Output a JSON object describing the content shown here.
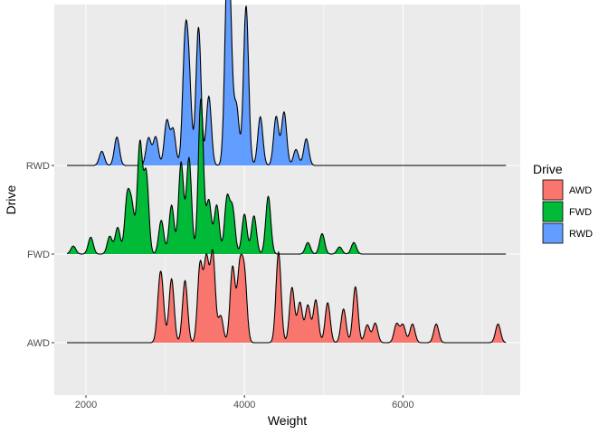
{
  "chart_data": {
    "type": "ridgeline",
    "xlabel": "Weight",
    "ylabel": "Drive",
    "xlim": [
      1600,
      7480
    ],
    "x_ticks": [
      2000,
      4000,
      6000
    ],
    "x_tick_labels": [
      "2000",
      "4000",
      "6000"
    ],
    "x_minor_ticks": [
      3000,
      5000,
      7000
    ],
    "categories": [
      "AWD",
      "FWD",
      "RWD"
    ],
    "density_x_range": [
      1760,
      7300
    ],
    "ridge_scale": 1.74,
    "grid": true,
    "legend": {
      "title": "Drive",
      "position": "right"
    },
    "colors": {
      "AWD": "#F8766D",
      "FWD": "#00BA38",
      "RWD": "#619CFF",
      "panel": "#EBEBEB",
      "grid": "#FFFFFF"
    },
    "series": [
      {
        "name": "AWD",
        "peaks": [
          {
            "x": 2930,
            "h": 0.5
          },
          {
            "x": 2960,
            "h": 0.4
          },
          {
            "x": 3080,
            "h": 0.72
          },
          {
            "x": 3250,
            "h": 0.7
          },
          {
            "x": 3440,
            "h": 0.88
          },
          {
            "x": 3520,
            "h": 0.92
          },
          {
            "x": 3600,
            "h": 1.0
          },
          {
            "x": 3700,
            "h": 0.3
          },
          {
            "x": 3850,
            "h": 0.85
          },
          {
            "x": 3940,
            "h": 0.8
          },
          {
            "x": 4000,
            "h": 0.74
          },
          {
            "x": 4430,
            "h": 1.02
          },
          {
            "x": 4600,
            "h": 0.62
          },
          {
            "x": 4700,
            "h": 0.45
          },
          {
            "x": 4800,
            "h": 0.42
          },
          {
            "x": 4900,
            "h": 0.48
          },
          {
            "x": 5050,
            "h": 0.45
          },
          {
            "x": 5250,
            "h": 0.38
          },
          {
            "x": 5400,
            "h": 0.63
          },
          {
            "x": 5550,
            "h": 0.2
          },
          {
            "x": 5650,
            "h": 0.22
          },
          {
            "x": 5920,
            "h": 0.21
          },
          {
            "x": 6000,
            "h": 0.2
          },
          {
            "x": 6120,
            "h": 0.21
          },
          {
            "x": 6420,
            "h": 0.21
          },
          {
            "x": 7200,
            "h": 0.21
          }
        ]
      },
      {
        "name": "FWD",
        "peaks": [
          {
            "x": 1840,
            "h": 0.09
          },
          {
            "x": 2060,
            "h": 0.19
          },
          {
            "x": 2300,
            "h": 0.2
          },
          {
            "x": 2400,
            "h": 0.3
          },
          {
            "x": 2520,
            "h": 0.62
          },
          {
            "x": 2580,
            "h": 0.5
          },
          {
            "x": 2680,
            "h": 1.24
          },
          {
            "x": 2760,
            "h": 0.9
          },
          {
            "x": 2950,
            "h": 0.38
          },
          {
            "x": 3080,
            "h": 0.55
          },
          {
            "x": 3200,
            "h": 1.03
          },
          {
            "x": 3300,
            "h": 1.08
          },
          {
            "x": 3450,
            "h": 1.75
          },
          {
            "x": 3550,
            "h": 0.6
          },
          {
            "x": 3650,
            "h": 0.55
          },
          {
            "x": 3780,
            "h": 0.62
          },
          {
            "x": 3850,
            "h": 0.5
          },
          {
            "x": 4000,
            "h": 0.45
          },
          {
            "x": 4120,
            "h": 0.43
          },
          {
            "x": 4300,
            "h": 0.65
          },
          {
            "x": 4800,
            "h": 0.13
          },
          {
            "x": 4980,
            "h": 0.23
          },
          {
            "x": 5200,
            "h": 0.08
          },
          {
            "x": 5380,
            "h": 0.13
          }
        ]
      },
      {
        "name": "RWD",
        "peaks": [
          {
            "x": 2200,
            "h": 0.16
          },
          {
            "x": 2390,
            "h": 0.32
          },
          {
            "x": 2790,
            "h": 0.31
          },
          {
            "x": 2880,
            "h": 0.32
          },
          {
            "x": 3020,
            "h": 0.5
          },
          {
            "x": 3100,
            "h": 0.4
          },
          {
            "x": 3250,
            "h": 1.28
          },
          {
            "x": 3300,
            "h": 0.9
          },
          {
            "x": 3420,
            "h": 1.56
          },
          {
            "x": 3550,
            "h": 0.78
          },
          {
            "x": 3780,
            "h": 1.8
          },
          {
            "x": 3820,
            "h": 1.2
          },
          {
            "x": 3900,
            "h": 0.65
          },
          {
            "x": 4020,
            "h": 1.8
          },
          {
            "x": 4200,
            "h": 0.55
          },
          {
            "x": 4400,
            "h": 0.55
          },
          {
            "x": 4500,
            "h": 0.6
          },
          {
            "x": 4650,
            "h": 0.18
          },
          {
            "x": 4780,
            "h": 0.3
          }
        ]
      }
    ]
  }
}
